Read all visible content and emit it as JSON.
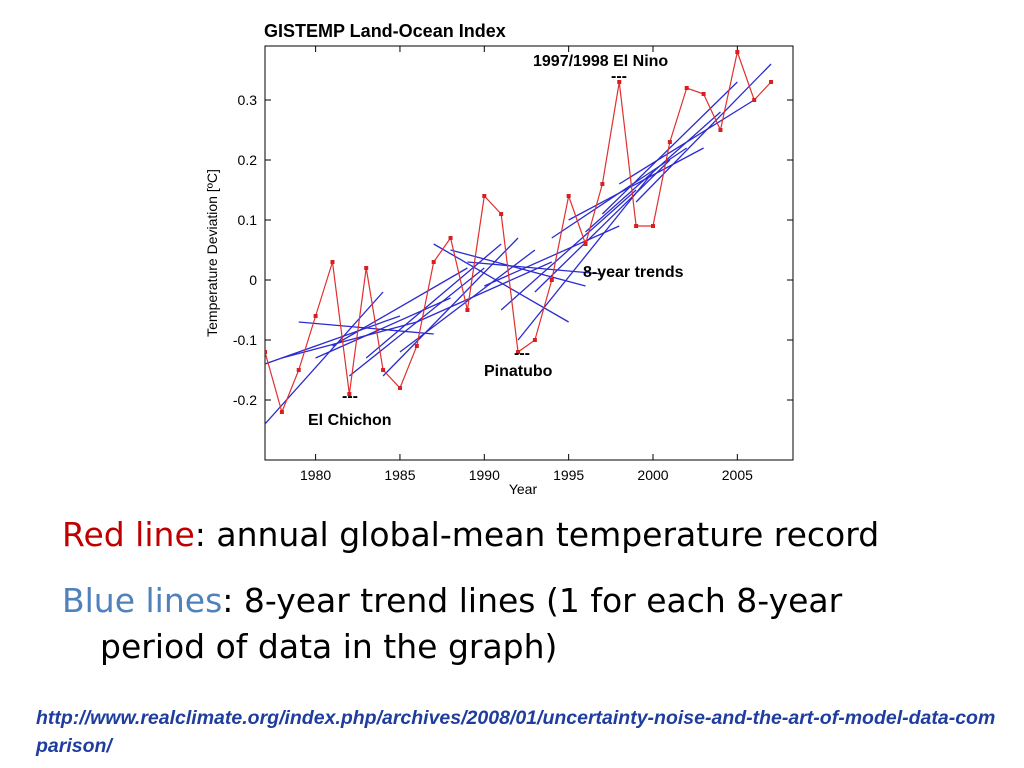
{
  "chart_data": {
    "type": "line",
    "title": "GISTEMP Land-Ocean Index",
    "xlabel": "Year",
    "ylabel": "Temperature Deviation [ºC]",
    "xlim": [
      1977,
      2008.3
    ],
    "ylim": [
      -0.3,
      0.39
    ],
    "xticks": [
      1980,
      1985,
      1990,
      1995,
      2000,
      2005
    ],
    "yticks": [
      -0.2,
      -0.1,
      0,
      0.1,
      0.2,
      0.3
    ],
    "xtick_labels": [
      "1980",
      "1985",
      "1990",
      "1995",
      "2000",
      "2005"
    ],
    "ytick_labels": [
      "-0.2",
      "-0.1",
      "0",
      "0.1",
      "0.2",
      "0.3"
    ],
    "grid": false,
    "series": [
      {
        "kind": "annual",
        "color": "#e03030",
        "x": [
          1977,
          1978,
          1979,
          1980,
          1981,
          1982,
          1983,
          1984,
          1985,
          1986,
          1987,
          1988,
          1989,
          1990,
          1991,
          1992,
          1993,
          1994,
          1995,
          1996,
          1997,
          1998,
          1999,
          2000,
          2001,
          2002,
          2003,
          2004,
          2005,
          2006,
          2007
        ],
        "y": [
          -0.12,
          -0.22,
          -0.15,
          -0.06,
          0.03,
          -0.19,
          0.02,
          -0.15,
          -0.18,
          -0.11,
          0.03,
          0.07,
          -0.05,
          0.14,
          0.11,
          -0.12,
          -0.1,
          0.0,
          0.14,
          0.06,
          0.16,
          0.33,
          0.09,
          0.09,
          0.23,
          0.32,
          0.31,
          0.25,
          0.38,
          0.3,
          0.33
        ]
      },
      {
        "kind": "trend",
        "color": "#2b2bd0",
        "segments": [
          {
            "x": [
              1977,
              1984
            ],
            "y": [
              -0.24,
              -0.02
            ]
          },
          {
            "x": [
              1977,
              1985
            ],
            "y": [
              -0.14,
              -0.06
            ]
          },
          {
            "x": [
              1978,
              1986
            ],
            "y": [
              -0.13,
              -0.07
            ]
          },
          {
            "x": [
              1979,
              1987
            ],
            "y": [
              -0.07,
              -0.09
            ]
          },
          {
            "x": [
              1980,
              1988
            ],
            "y": [
              -0.13,
              -0.03
            ]
          },
          {
            "x": [
              1981,
              1989
            ],
            "y": [
              -0.11,
              0.02
            ]
          },
          {
            "x": [
              1982,
              1990
            ],
            "y": [
              -0.16,
              0.02
            ]
          },
          {
            "x": [
              1983,
              1991
            ],
            "y": [
              -0.13,
              0.06
            ]
          },
          {
            "x": [
              1984,
              1992
            ],
            "y": [
              -0.16,
              0.07
            ]
          },
          {
            "x": [
              1985,
              1993
            ],
            "y": [
              -0.12,
              0.05
            ]
          },
          {
            "x": [
              1986,
              1994
            ],
            "y": [
              -0.07,
              0.03
            ]
          },
          {
            "x": [
              1987,
              1995
            ],
            "y": [
              0.06,
              -0.07
            ]
          },
          {
            "x": [
              1988,
              1996
            ],
            "y": [
              0.05,
              -0.01
            ]
          },
          {
            "x": [
              1989,
              1997
            ],
            "y": [
              0.03,
              0.01
            ]
          },
          {
            "x": [
              1990,
              1998
            ],
            "y": [
              -0.01,
              0.09
            ]
          },
          {
            "x": [
              1991,
              1999
            ],
            "y": [
              -0.05,
              0.15
            ]
          },
          {
            "x": [
              1992,
              2000
            ],
            "y": [
              -0.1,
              0.18
            ]
          },
          {
            "x": [
              1993,
              2001
            ],
            "y": [
              -0.02,
              0.2
            ]
          },
          {
            "x": [
              1994,
              2002
            ],
            "y": [
              0.07,
              0.22
            ]
          },
          {
            "x": [
              1995,
              2003
            ],
            "y": [
              0.1,
              0.22
            ]
          },
          {
            "x": [
              1996,
              2004
            ],
            "y": [
              0.08,
              0.28
            ]
          },
          {
            "x": [
              1997,
              2005
            ],
            "y": [
              0.11,
              0.33
            ]
          },
          {
            "x": [
              1998,
              2006
            ],
            "y": [
              0.16,
              0.3
            ]
          },
          {
            "x": [
              1999,
              2007
            ],
            "y": [
              0.13,
              0.36
            ]
          }
        ]
      }
    ],
    "annotations": [
      {
        "text": "1997/1998 El Nino",
        "mark": "---",
        "x": 1998
      },
      {
        "text": "8-year trends"
      },
      {
        "text": "Pinatubo",
        "mark": "---",
        "x": 1992.2
      },
      {
        "text": "El Chichon",
        "mark": "---",
        "x": 1982
      }
    ]
  },
  "bullets": [
    {
      "term": "Red line",
      "term_color": "#c00000",
      "text": ": annual global-mean temperature record",
      "cont": ""
    },
    {
      "term": "Blue lines",
      "term_color": "#4f81bd",
      "text": ": 8-year trend lines (1 for each 8-year",
      "cont": "period of data in the graph)"
    }
  ],
  "source_url": "http://www.realclimate.org/index.php/archives/2008/01/uncertainty-noise-and-the-art-of-model-data-comparison/"
}
